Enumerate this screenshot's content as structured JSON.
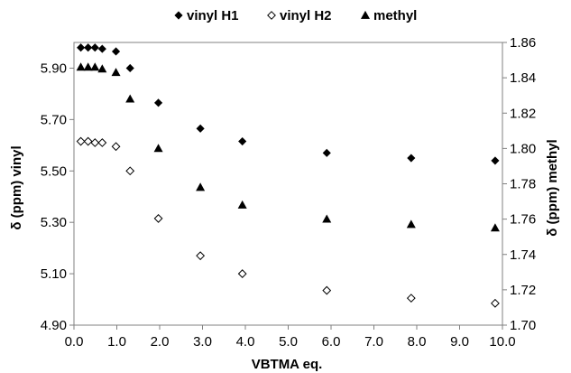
{
  "chart_data": {
    "type": "scatter",
    "xlabel": "VBTMA eq.",
    "ylabel": "δ (ppm) vinyl",
    "y2label": "δ (ppm) methyl",
    "xlim": [
      0,
      10
    ],
    "ylim": [
      4.9,
      6.0
    ],
    "y2lim": [
      1.7,
      1.86
    ],
    "grid": false,
    "legend_position": "top",
    "x_ticks": [
      "0.0",
      "1.0",
      "2.0",
      "3.0",
      "4.0",
      "5.0",
      "6.0",
      "7.0",
      "8.0",
      "9.0",
      "10.0"
    ],
    "y_ticks": [
      "4.90",
      "5.10",
      "5.30",
      "5.50",
      "5.70",
      "5.90"
    ],
    "y2_ticks": [
      "1.70",
      "1.72",
      "1.74",
      "1.76",
      "1.78",
      "1.80",
      "1.82",
      "1.84",
      "1.86"
    ],
    "series": [
      {
        "name": "vinyl H1",
        "marker": "filled-diamond",
        "axis": "left",
        "color": "#000000",
        "x": [
          0.16,
          0.33,
          0.49,
          0.66,
          0.98,
          1.31,
          1.97,
          2.95,
          3.93,
          5.9,
          7.87,
          9.83
        ],
        "y": [
          5.98,
          5.98,
          5.98,
          5.975,
          5.965,
          5.9,
          5.765,
          5.665,
          5.615,
          5.57,
          5.55,
          5.54
        ]
      },
      {
        "name": "vinyl H2",
        "marker": "open-diamond",
        "axis": "left",
        "color": "#000000",
        "x": [
          0.16,
          0.33,
          0.49,
          0.66,
          0.98,
          1.31,
          1.97,
          2.95,
          3.93,
          5.9,
          7.87,
          9.83
        ],
        "y": [
          5.615,
          5.615,
          5.61,
          5.61,
          5.595,
          5.5,
          5.315,
          5.17,
          5.1,
          5.035,
          5.005,
          4.985
        ]
      },
      {
        "name": "methyl",
        "marker": "filled-triangle",
        "axis": "right",
        "color": "#000000",
        "x": [
          0.16,
          0.33,
          0.49,
          0.66,
          0.98,
          1.31,
          1.97,
          2.95,
          3.93,
          5.9,
          7.87,
          9.83
        ],
        "y": [
          1.846,
          1.846,
          1.846,
          1.845,
          1.843,
          1.828,
          1.8,
          1.778,
          1.768,
          1.76,
          1.757,
          1.755
        ]
      }
    ]
  }
}
